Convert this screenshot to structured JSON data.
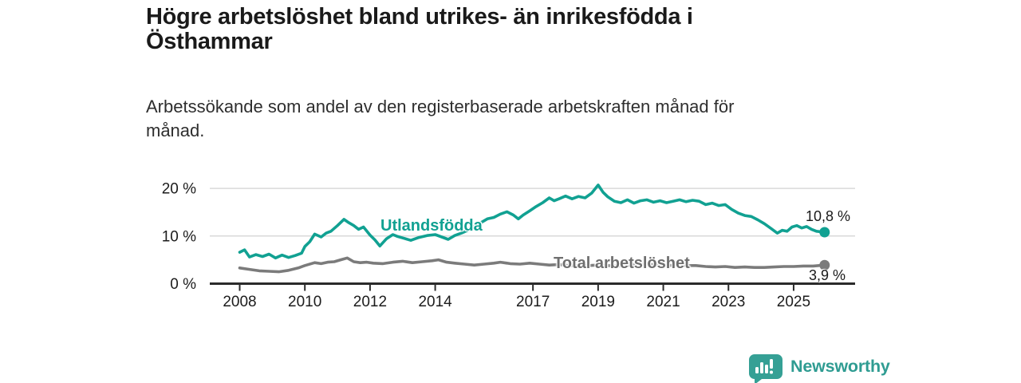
{
  "header": {
    "title_lines": [
      "Högre arbetslöshet bland utrikes- än inrikesfödda i",
      "Östhammar"
    ],
    "subtitle_lines": [
      "Arbetssökande som andel av den registerbaserade arbetskraften månad för",
      "månad."
    ]
  },
  "chart_data": {
    "type": "line",
    "title": "Högre arbetslöshet bland utrikes- än inrikesfödda i Östhammar",
    "subtitle": "Arbetssökande som andel av den registerbaserade arbetskraften månad för månad.",
    "xlabel": "",
    "ylabel": "",
    "grid": "horizontal",
    "legend_position": "inline-labels",
    "x_axis": {
      "ticks": [
        2008,
        2010,
        2012,
        2014,
        2017,
        2019,
        2021,
        2023,
        2025
      ],
      "range": [
        2007.1,
        2026.9
      ]
    },
    "y_axis": {
      "ticks": [
        {
          "value": 0,
          "label": "0 %"
        },
        {
          "value": 10,
          "label": "10 %"
        },
        {
          "value": 20,
          "label": "20 %"
        }
      ],
      "range": [
        0,
        22
      ],
      "unit": "%"
    },
    "series": [
      {
        "name": "Utlandsfödda",
        "color": "#11a192",
        "end_label": "10,8 %",
        "latest_value": 10.8,
        "points": [
          [
            2008.0,
            6.6
          ],
          [
            2008.15,
            7.1
          ],
          [
            2008.3,
            5.6
          ],
          [
            2008.5,
            6.1
          ],
          [
            2008.7,
            5.7
          ],
          [
            2008.9,
            6.2
          ],
          [
            2009.1,
            5.4
          ],
          [
            2009.3,
            6.0
          ],
          [
            2009.5,
            5.5
          ],
          [
            2009.7,
            5.9
          ],
          [
            2009.9,
            6.4
          ],
          [
            2010.0,
            7.8
          ],
          [
            2010.15,
            8.8
          ],
          [
            2010.3,
            10.4
          ],
          [
            2010.5,
            9.8
          ],
          [
            2010.65,
            10.6
          ],
          [
            2010.8,
            11.0
          ],
          [
            2011.0,
            12.2
          ],
          [
            2011.2,
            13.5
          ],
          [
            2011.35,
            12.8
          ],
          [
            2011.5,
            12.2
          ],
          [
            2011.65,
            11.4
          ],
          [
            2011.8,
            11.9
          ],
          [
            2012.0,
            10.2
          ],
          [
            2012.15,
            9.2
          ],
          [
            2012.3,
            7.9
          ],
          [
            2012.5,
            9.4
          ],
          [
            2012.7,
            10.3
          ],
          [
            2012.85,
            9.9
          ],
          [
            2013.0,
            9.6
          ],
          [
            2013.25,
            9.1
          ],
          [
            2013.5,
            9.7
          ],
          [
            2013.75,
            10.1
          ],
          [
            2014.0,
            10.3
          ],
          [
            2014.2,
            9.8
          ],
          [
            2014.4,
            9.3
          ],
          [
            2014.6,
            10.1
          ],
          [
            2014.8,
            10.6
          ],
          [
            2015.0,
            11.2
          ],
          [
            2015.2,
            12.0
          ],
          [
            2015.4,
            12.8
          ],
          [
            2015.6,
            13.6
          ],
          [
            2015.8,
            13.9
          ],
          [
            2016.0,
            14.6
          ],
          [
            2016.2,
            15.1
          ],
          [
            2016.4,
            14.4
          ],
          [
            2016.55,
            13.6
          ],
          [
            2016.7,
            14.4
          ],
          [
            2016.9,
            15.3
          ],
          [
            2017.1,
            16.2
          ],
          [
            2017.3,
            17.0
          ],
          [
            2017.5,
            18.0
          ],
          [
            2017.65,
            17.4
          ],
          [
            2017.8,
            17.8
          ],
          [
            2018.0,
            18.4
          ],
          [
            2018.2,
            17.8
          ],
          [
            2018.4,
            18.3
          ],
          [
            2018.6,
            18.0
          ],
          [
            2018.8,
            19.0
          ],
          [
            2019.0,
            20.7
          ],
          [
            2019.15,
            19.2
          ],
          [
            2019.3,
            18.2
          ],
          [
            2019.5,
            17.3
          ],
          [
            2019.7,
            17.0
          ],
          [
            2019.9,
            17.6
          ],
          [
            2020.1,
            16.9
          ],
          [
            2020.3,
            17.4
          ],
          [
            2020.5,
            17.6
          ],
          [
            2020.7,
            17.1
          ],
          [
            2020.9,
            17.4
          ],
          [
            2021.1,
            17.0
          ],
          [
            2021.3,
            17.3
          ],
          [
            2021.5,
            17.6
          ],
          [
            2021.7,
            17.2
          ],
          [
            2021.9,
            17.5
          ],
          [
            2022.1,
            17.3
          ],
          [
            2022.3,
            16.6
          ],
          [
            2022.5,
            16.9
          ],
          [
            2022.7,
            16.4
          ],
          [
            2022.9,
            16.6
          ],
          [
            2023.1,
            15.6
          ],
          [
            2023.3,
            14.8
          ],
          [
            2023.5,
            14.3
          ],
          [
            2023.7,
            14.1
          ],
          [
            2023.9,
            13.4
          ],
          [
            2024.1,
            12.6
          ],
          [
            2024.3,
            11.6
          ],
          [
            2024.5,
            10.6
          ],
          [
            2024.65,
            11.2
          ],
          [
            2024.8,
            11.0
          ],
          [
            2024.95,
            11.9
          ],
          [
            2025.1,
            12.2
          ],
          [
            2025.25,
            11.7
          ],
          [
            2025.4,
            12.0
          ],
          [
            2025.55,
            11.4
          ],
          [
            2025.7,
            11.0
          ],
          [
            2025.95,
            10.8
          ]
        ]
      },
      {
        "name": "Total arbetslöshet",
        "color": "#7b7b7b",
        "end_label": "3,9 %",
        "latest_value": 3.9,
        "points": [
          [
            2008.0,
            3.3
          ],
          [
            2008.3,
            3.0
          ],
          [
            2008.6,
            2.7
          ],
          [
            2008.9,
            2.6
          ],
          [
            2009.2,
            2.5
          ],
          [
            2009.5,
            2.8
          ],
          [
            2009.8,
            3.3
          ],
          [
            2010.0,
            3.8
          ],
          [
            2010.3,
            4.4
          ],
          [
            2010.5,
            4.2
          ],
          [
            2010.7,
            4.5
          ],
          [
            2010.9,
            4.6
          ],
          [
            2011.1,
            5.0
          ],
          [
            2011.3,
            5.4
          ],
          [
            2011.5,
            4.6
          ],
          [
            2011.7,
            4.4
          ],
          [
            2011.9,
            4.5
          ],
          [
            2012.1,
            4.3
          ],
          [
            2012.4,
            4.2
          ],
          [
            2012.7,
            4.5
          ],
          [
            2013.0,
            4.7
          ],
          [
            2013.3,
            4.4
          ],
          [
            2013.6,
            4.6
          ],
          [
            2013.9,
            4.8
          ],
          [
            2014.1,
            5.0
          ],
          [
            2014.35,
            4.5
          ],
          [
            2014.6,
            4.3
          ],
          [
            2014.9,
            4.1
          ],
          [
            2015.2,
            3.9
          ],
          [
            2015.5,
            4.1
          ],
          [
            2015.8,
            4.3
          ],
          [
            2016.0,
            4.5
          ],
          [
            2016.3,
            4.2
          ],
          [
            2016.6,
            4.1
          ],
          [
            2016.9,
            4.3
          ],
          [
            2017.2,
            4.1
          ],
          [
            2017.5,
            3.9
          ],
          [
            2017.8,
            4.0
          ],
          [
            2018.1,
            3.8
          ],
          [
            2018.4,
            3.7
          ],
          [
            2018.7,
            3.8
          ],
          [
            2019.0,
            3.9
          ],
          [
            2019.3,
            3.8
          ],
          [
            2019.6,
            3.7
          ],
          [
            2019.9,
            3.8
          ],
          [
            2020.2,
            4.0
          ],
          [
            2020.5,
            4.1
          ],
          [
            2020.8,
            3.9
          ],
          [
            2021.1,
            3.8
          ],
          [
            2021.4,
            3.9
          ],
          [
            2021.7,
            3.8
          ],
          [
            2022.0,
            3.8
          ],
          [
            2022.3,
            3.6
          ],
          [
            2022.6,
            3.5
          ],
          [
            2022.9,
            3.6
          ],
          [
            2023.2,
            3.4
          ],
          [
            2023.5,
            3.5
          ],
          [
            2023.8,
            3.4
          ],
          [
            2024.1,
            3.4
          ],
          [
            2024.4,
            3.5
          ],
          [
            2024.7,
            3.6
          ],
          [
            2025.0,
            3.6
          ],
          [
            2025.3,
            3.7
          ],
          [
            2025.6,
            3.7
          ],
          [
            2025.95,
            3.9
          ]
        ]
      }
    ]
  },
  "footer": {
    "brand": "Newsworthy",
    "brand_color": "#2f9c92"
  }
}
